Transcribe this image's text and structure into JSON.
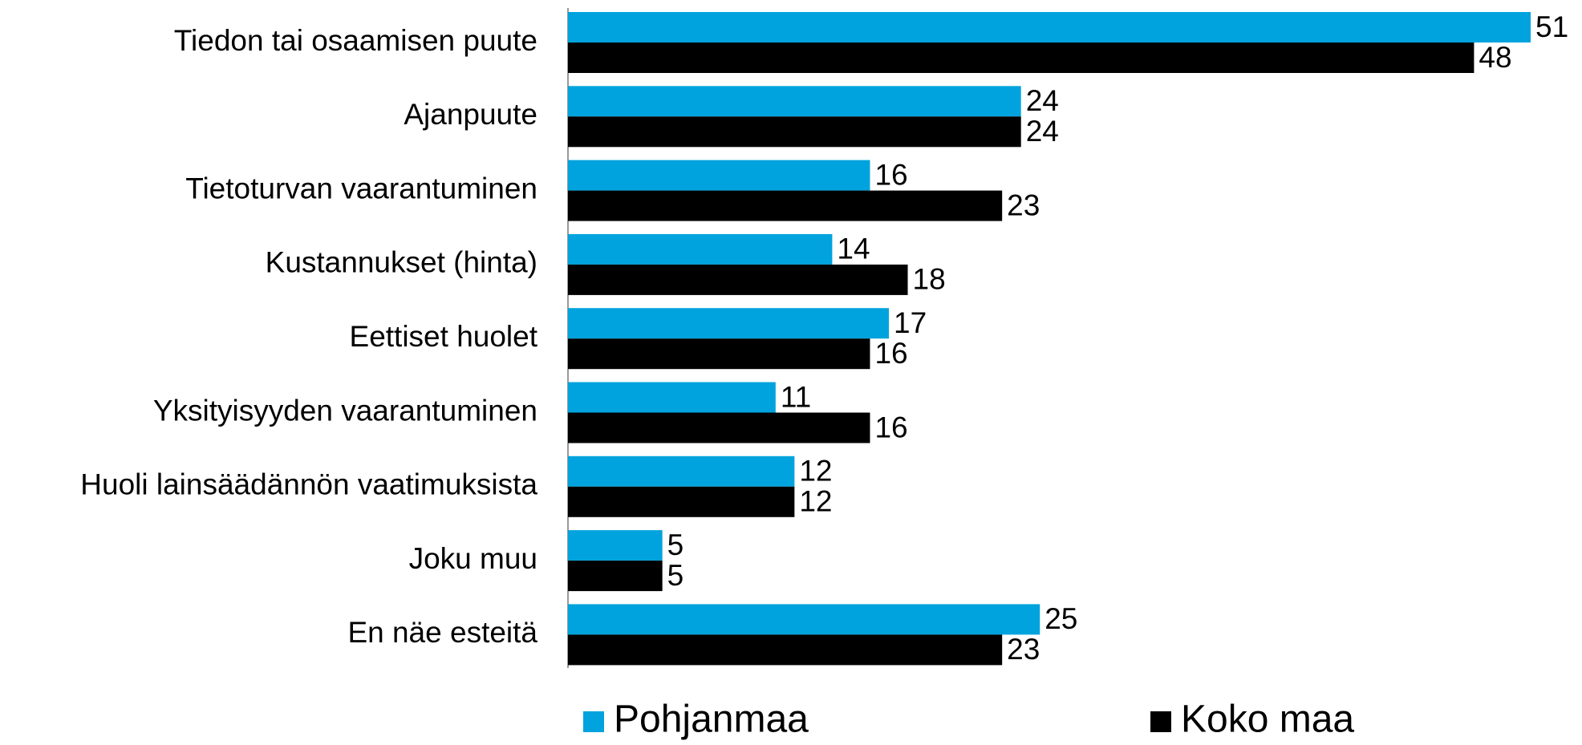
{
  "chart_data": {
    "type": "hbar",
    "categories": [
      "Tiedon tai osaamisen puute",
      "Ajanpuute",
      "Tietoturvan vaarantuminen",
      "Kustannukset (hinta)",
      "Eettiset huolet",
      "Yksityisyyden vaarantuminen",
      "Huoli lainsäädännön vaatimuksista",
      "Joku muu",
      "En näe esteitä"
    ],
    "series": [
      {
        "name": "Pohjanmaa",
        "color": "#00a3dd",
        "values": [
          51,
          24,
          16,
          14,
          17,
          11,
          12,
          5,
          25
        ]
      },
      {
        "name": "Koko maa",
        "color": "#000000",
        "values": [
          48,
          24,
          23,
          18,
          16,
          16,
          12,
          5,
          23
        ]
      }
    ],
    "legend": "bottom"
  }
}
